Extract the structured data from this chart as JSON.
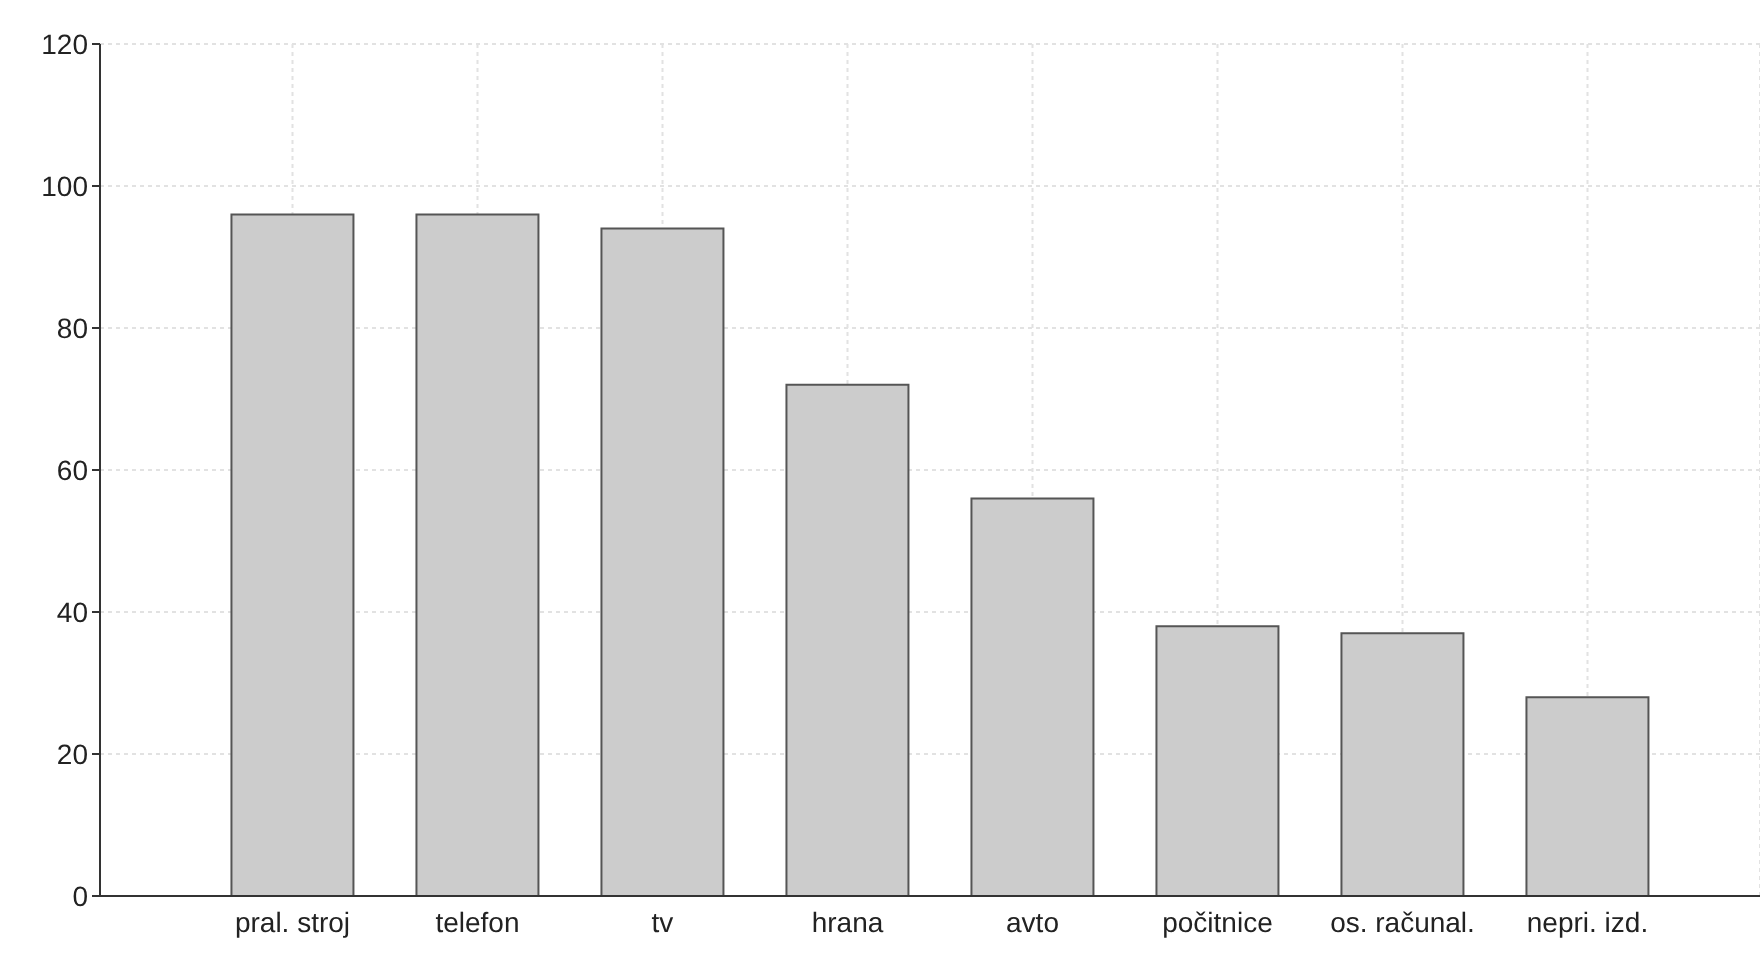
{
  "chart_data": {
    "type": "bar",
    "categories": [
      "pral. stroj",
      "telefon",
      "tv",
      "hrana",
      "avto",
      "počitnice",
      "os. računal.",
      "nepri. izd."
    ],
    "values": [
      96,
      96,
      94,
      72,
      56,
      38,
      37,
      28
    ],
    "color": "#cccccc",
    "ylim": [
      0,
      120
    ],
    "yticks": [
      0,
      20,
      40,
      60,
      80,
      100,
      120
    ],
    "grid": true
  }
}
